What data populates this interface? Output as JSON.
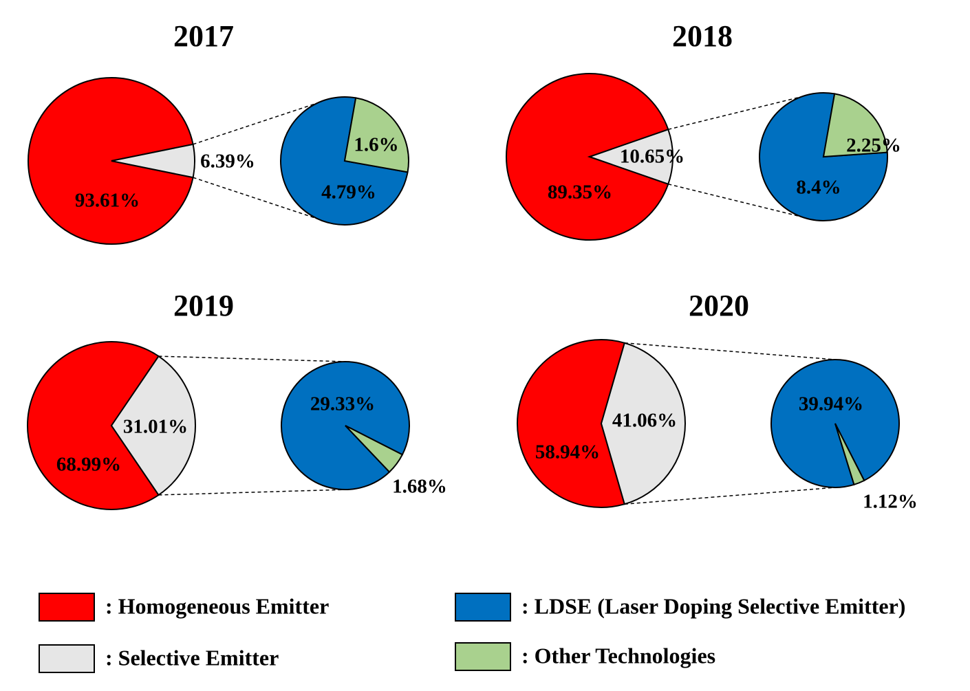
{
  "chart_data": [
    {
      "type": "pie",
      "title": "2017",
      "main": [
        {
          "name": "Homogeneous Emitter",
          "value": 93.61,
          "label": "93.61%"
        },
        {
          "name": "Selective Emitter",
          "value": 6.39,
          "label": "6.39%"
        }
      ],
      "breakdown": [
        {
          "name": "LDSE (Laser Doping Selective Emitter)",
          "value": 4.79,
          "label": "4.79%"
        },
        {
          "name": "Other Technologies",
          "value": 1.6,
          "label": "1.6%"
        }
      ]
    },
    {
      "type": "pie",
      "title": "2018",
      "main": [
        {
          "name": "Homogeneous Emitter",
          "value": 89.35,
          "label": "89.35%"
        },
        {
          "name": "Selective Emitter",
          "value": 10.65,
          "label": "10.65%"
        }
      ],
      "breakdown": [
        {
          "name": "LDSE (Laser Doping Selective Emitter)",
          "value": 8.4,
          "label": "8.4%"
        },
        {
          "name": "Other Technologies",
          "value": 2.25,
          "label": "2.25%"
        }
      ]
    },
    {
      "type": "pie",
      "title": "2019",
      "main": [
        {
          "name": "Homogeneous Emitter",
          "value": 68.99,
          "label": "68.99%"
        },
        {
          "name": "Selective Emitter",
          "value": 31.01,
          "label": "31.01%"
        }
      ],
      "breakdown": [
        {
          "name": "LDSE (Laser Doping Selective Emitter)",
          "value": 29.33,
          "label": "29.33%"
        },
        {
          "name": "Other Technologies",
          "value": 1.68,
          "label": "1.68%"
        }
      ]
    },
    {
      "type": "pie",
      "title": "2020",
      "main": [
        {
          "name": "Homogeneous Emitter",
          "value": 58.94,
          "label": "58.94%"
        },
        {
          "name": "Selective Emitter",
          "value": 41.06,
          "label": "41.06%"
        }
      ],
      "breakdown": [
        {
          "name": "LDSE (Laser Doping Selective Emitter)",
          "value": 39.94,
          "label": "39.94%"
        },
        {
          "name": "Other Technologies",
          "value": 1.12,
          "label": "1.12%"
        }
      ]
    }
  ],
  "legend": [
    {
      "label": ": Homogeneous Emitter",
      "color": "#ff0000"
    },
    {
      "label": ": Selective Emitter",
      "color": "#e6e6e6"
    },
    {
      "label": ": LDSE (Laser Doping Selective Emitter)",
      "color": "#0070c0"
    },
    {
      "label": ": Other Technologies",
      "color": "#a9d18e"
    }
  ],
  "colors": {
    "homogeneous": "#ff0000",
    "selective": "#e6e6e6",
    "ldse": "#0070c0",
    "other": "#a9d18e"
  }
}
